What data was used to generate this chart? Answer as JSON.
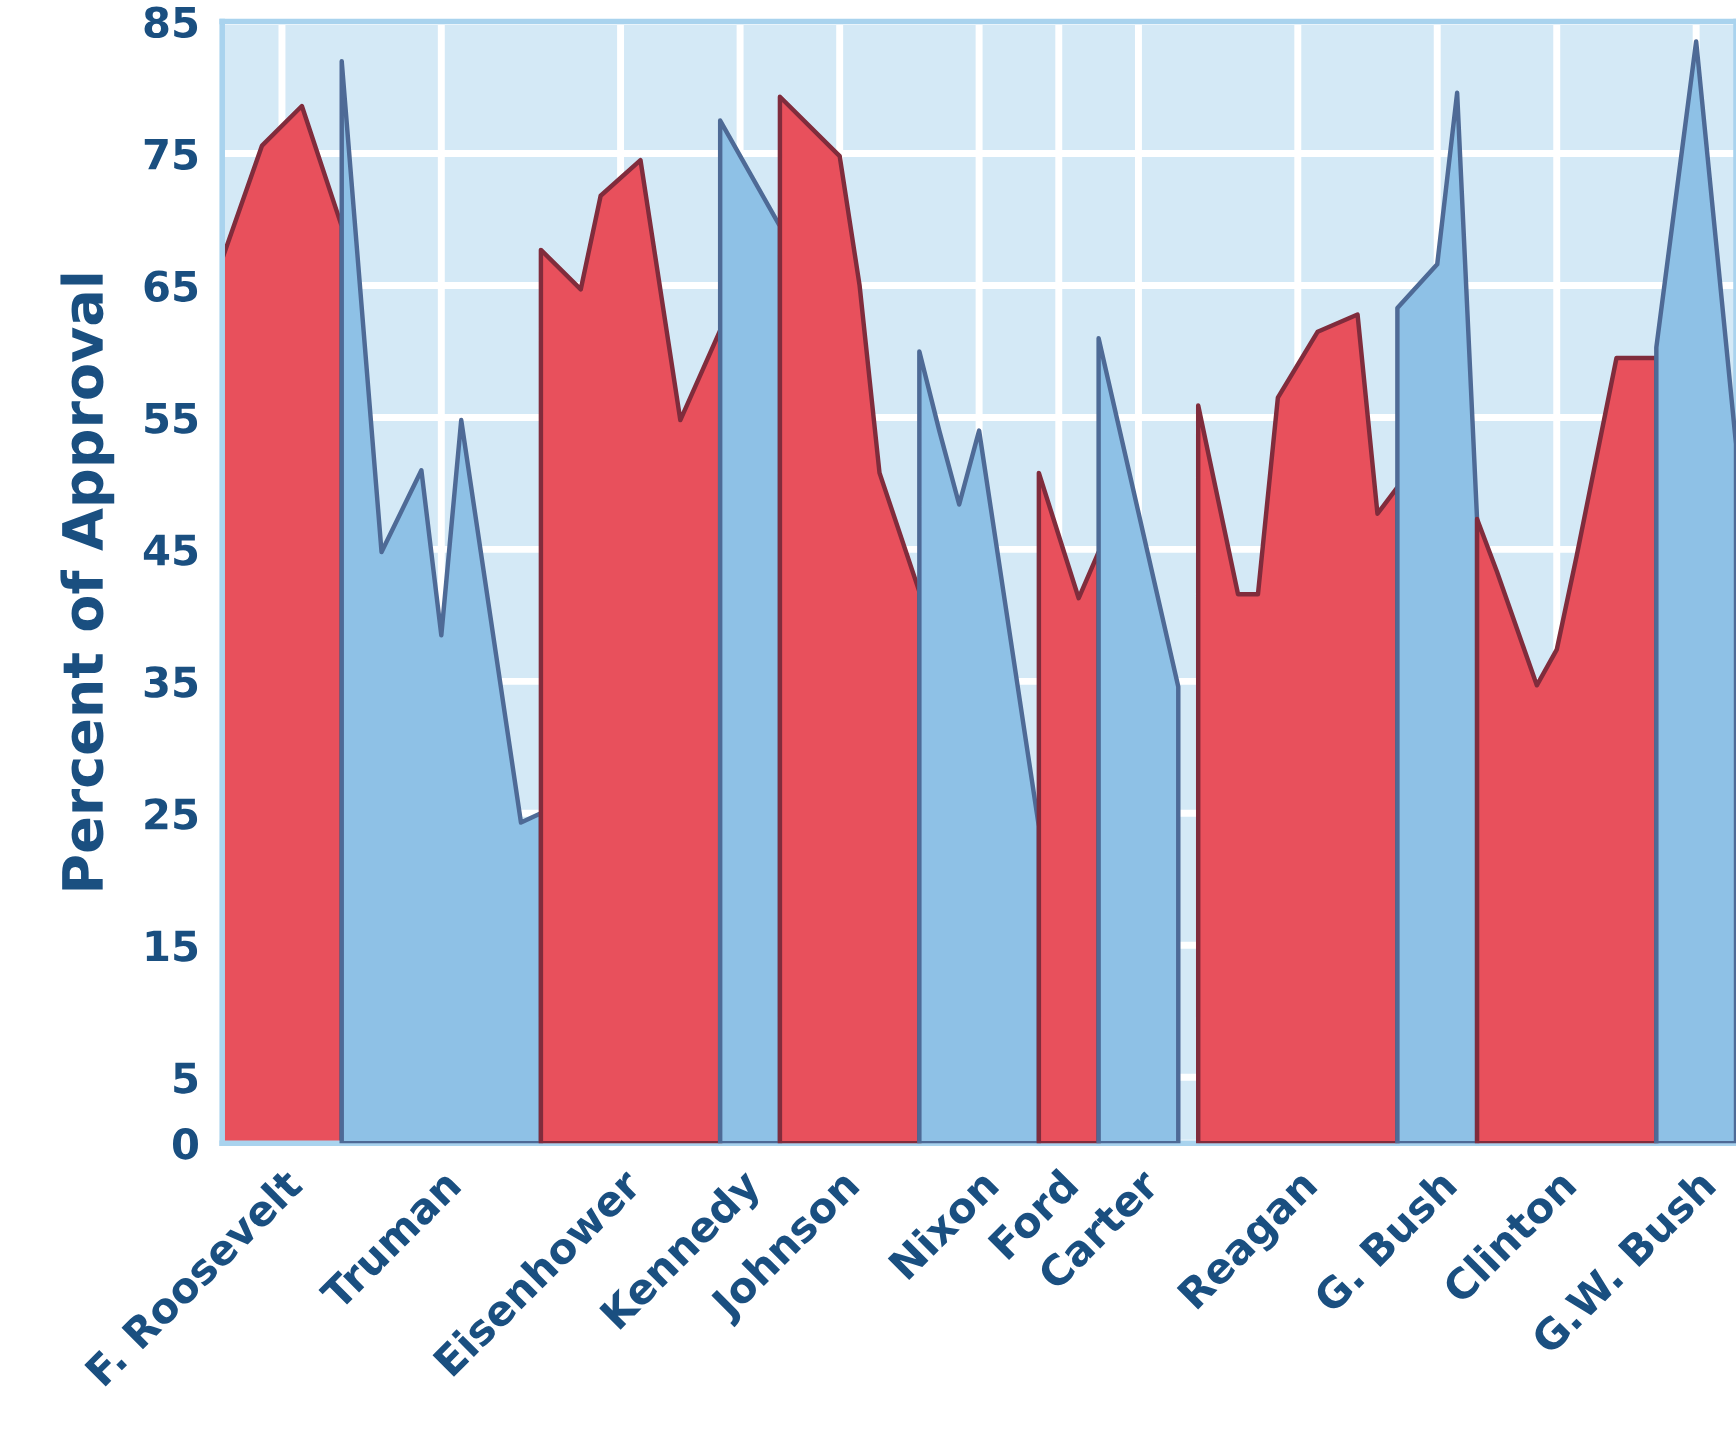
{
  "chart_data": {
    "type": "area",
    "ylabel": "Percent of Approval",
    "ylim": [
      0,
      85
    ],
    "yticks": [
      0,
      5,
      15,
      25,
      35,
      45,
      55,
      65,
      75,
      85
    ],
    "categories": [
      null,
      null,
      null,
      "F. Roosevelt",
      null,
      null,
      null,
      null,
      null,
      null,
      null,
      "Truman",
      null,
      null,
      null,
      null,
      null,
      null,
      null,
      null,
      "Eisenhower",
      null,
      null,
      null,
      null,
      null,
      "Kennedy",
      null,
      null,
      null,
      null,
      "Johnson",
      null,
      null,
      null,
      null,
      null,
      null,
      "Nixon",
      null,
      null,
      null,
      "Ford",
      null,
      null,
      null,
      "Carter",
      null,
      null,
      null,
      null,
      null,
      null,
      null,
      "Reagan",
      null,
      null,
      null,
      null,
      null,
      null,
      "G. Bush",
      null,
      null,
      null,
      null,
      null,
      "Clinton",
      null,
      null,
      null,
      null,
      null,
      null,
      "G.W. Bush",
      null,
      null
    ],
    "grid": true,
    "series": [
      {
        "color": "#e8505c",
        "values": [
          67,
          null,
          75.6,
          null,
          78.6,
          null,
          69.5,
          null,
          null,
          null,
          null,
          null,
          null,
          null,
          null,
          null,
          null,
          null,
          null,
          null,
          null,
          null,
          null,
          null,
          null,
          null,
          null,
          null,
          null,
          null,
          null,
          null,
          null,
          null,
          null,
          null,
          null,
          null,
          null,
          null,
          null,
          null,
          null,
          null,
          null,
          null,
          null,
          null,
          null,
          null,
          null,
          null,
          null,
          null,
          null,
          null,
          null,
          null,
          null,
          null,
          null,
          null,
          null,
          null,
          null,
          null,
          null,
          null,
          null,
          null,
          null,
          null,
          null,
          null,
          null,
          null,
          null
        ]
      },
      {
        "color": "#8ec1e6",
        "values": [
          null,
          null,
          null,
          null,
          null,
          null,
          82,
          null,
          44.8,
          null,
          51,
          38.5,
          54.8,
          null,
          null,
          24.3,
          25,
          null,
          null,
          null,
          null,
          null,
          null,
          null,
          null,
          null,
          null,
          null,
          null,
          null,
          null,
          null,
          null,
          null,
          null,
          null,
          null,
          null,
          null,
          null,
          null,
          null,
          null,
          null,
          null,
          null,
          null,
          null,
          null,
          null,
          null,
          null,
          null,
          null,
          null,
          null,
          null,
          null,
          null,
          null,
          null,
          null,
          null,
          null,
          null,
          null,
          null,
          null,
          null,
          null,
          null,
          null,
          null,
          null,
          null,
          null,
          null
        ]
      },
      {
        "color": "#e8505c",
        "values": [
          null,
          null,
          null,
          null,
          null,
          null,
          null,
          null,
          null,
          null,
          null,
          null,
          null,
          null,
          null,
          null,
          67.7,
          null,
          64.7,
          71.8,
          null,
          74.5,
          null,
          54.8,
          null,
          61.6,
          null,
          null,
          null,
          null,
          null,
          null,
          null,
          null,
          null,
          null,
          null,
          null,
          null,
          null,
          null,
          null,
          null,
          null,
          null,
          null,
          null,
          null,
          null,
          null,
          null,
          null,
          null,
          null,
          null,
          null,
          null,
          null,
          null,
          null,
          null,
          null,
          null,
          null,
          null,
          null,
          null,
          null,
          null,
          null,
          null,
          null,
          null,
          null,
          null,
          null,
          null
        ]
      },
      {
        "color": "#8ec1e6",
        "values": [
          null,
          null,
          null,
          null,
          null,
          null,
          null,
          null,
          null,
          null,
          null,
          null,
          null,
          null,
          null,
          null,
          null,
          null,
          null,
          null,
          null,
          null,
          null,
          null,
          null,
          77.5,
          null,
          null,
          69.5,
          null,
          null,
          null,
          null,
          null,
          null,
          null,
          null,
          null,
          null,
          null,
          null,
          null,
          null,
          null,
          null,
          null,
          null,
          null,
          null,
          null,
          null,
          null,
          null,
          null,
          null,
          null,
          null,
          null,
          null,
          null,
          null,
          null,
          null,
          null,
          null,
          null,
          null,
          null,
          null,
          null,
          null,
          null,
          null,
          null,
          null,
          null,
          null
        ]
      },
      {
        "color": "#e8505c",
        "values": [
          null,
          null,
          null,
          null,
          null,
          null,
          null,
          null,
          null,
          null,
          null,
          null,
          null,
          null,
          null,
          null,
          null,
          null,
          null,
          null,
          null,
          null,
          null,
          null,
          null,
          null,
          null,
          null,
          79.3,
          null,
          null,
          74.8,
          65,
          50.8,
          null,
          41.8,
          null,
          null,
          null,
          null,
          null,
          null,
          null,
          null,
          null,
          null,
          null,
          null,
          null,
          null,
          null,
          null,
          null,
          null,
          null,
          null,
          null,
          null,
          null,
          null,
          null,
          null,
          null,
          null,
          null,
          null,
          null,
          null,
          null,
          null,
          null,
          null,
          null,
          null,
          null,
          null,
          null
        ]
      },
      {
        "color": "#8ec1e6",
        "values": [
          null,
          null,
          null,
          null,
          null,
          null,
          null,
          null,
          null,
          null,
          null,
          null,
          null,
          null,
          null,
          null,
          null,
          null,
          null,
          null,
          null,
          null,
          null,
          null,
          null,
          null,
          null,
          null,
          null,
          null,
          null,
          null,
          null,
          null,
          null,
          60,
          54,
          48.4,
          54,
          null,
          null,
          24,
          null,
          null,
          null,
          null,
          null,
          null,
          null,
          null,
          null,
          null,
          null,
          null,
          null,
          null,
          null,
          null,
          null,
          null,
          null,
          null,
          null,
          null,
          null,
          null,
          null,
          null,
          null,
          null,
          null,
          null,
          null,
          null,
          null,
          null,
          null
        ]
      },
      {
        "color": "#e8505c",
        "values": [
          null,
          null,
          null,
          null,
          null,
          null,
          null,
          null,
          null,
          null,
          null,
          null,
          null,
          null,
          null,
          null,
          null,
          null,
          null,
          null,
          null,
          null,
          null,
          null,
          null,
          null,
          null,
          null,
          null,
          null,
          null,
          null,
          null,
          null,
          null,
          null,
          null,
          null,
          null,
          null,
          null,
          50.8,
          null,
          41.3,
          44.8,
          null,
          null,
          null,
          null,
          null,
          null,
          null,
          null,
          null,
          null,
          null,
          null,
          null,
          null,
          null,
          null,
          null,
          null,
          null,
          null,
          null,
          null,
          null,
          null,
          null,
          null,
          null,
          null,
          null,
          null,
          null,
          null
        ]
      },
      {
        "color": "#8ec1e6",
        "values": [
          null,
          null,
          null,
          null,
          null,
          null,
          null,
          null,
          null,
          null,
          null,
          null,
          null,
          null,
          null,
          null,
          null,
          null,
          null,
          null,
          null,
          null,
          null,
          null,
          null,
          null,
          null,
          null,
          null,
          null,
          null,
          null,
          null,
          null,
          null,
          null,
          null,
          null,
          null,
          null,
          null,
          null,
          null,
          null,
          61,
          null,
          null,
          null,
          34.6,
          null,
          null,
          null,
          null,
          null,
          null,
          null,
          null,
          null,
          null,
          null,
          null,
          null,
          null,
          null,
          null,
          null,
          null,
          null,
          null,
          null,
          null,
          null,
          null,
          null,
          null,
          null,
          null
        ]
      },
      {
        "color": "#e8505c",
        "values": [
          null,
          null,
          null,
          null,
          null,
          null,
          null,
          null,
          null,
          null,
          null,
          null,
          null,
          null,
          null,
          null,
          null,
          null,
          null,
          null,
          null,
          null,
          null,
          null,
          null,
          null,
          null,
          null,
          null,
          null,
          null,
          null,
          null,
          null,
          null,
          null,
          null,
          null,
          null,
          null,
          null,
          null,
          null,
          null,
          null,
          null,
          null,
          null,
          null,
          55.9,
          null,
          41.6,
          41.6,
          56.5,
          null,
          61.5,
          null,
          62.8,
          47.7,
          49.7,
          null,
          null,
          null,
          null,
          null,
          null,
          null,
          null,
          null,
          null,
          null,
          null,
          null,
          null,
          null,
          null,
          null
        ]
      },
      {
        "color": "#8ec1e6",
        "values": [
          null,
          null,
          null,
          null,
          null,
          null,
          null,
          null,
          null,
          null,
          null,
          null,
          null,
          null,
          null,
          null,
          null,
          null,
          null,
          null,
          null,
          null,
          null,
          null,
          null,
          null,
          null,
          null,
          null,
          null,
          null,
          null,
          null,
          null,
          null,
          null,
          null,
          null,
          null,
          null,
          null,
          null,
          null,
          null,
          null,
          null,
          null,
          null,
          null,
          null,
          null,
          null,
          null,
          null,
          null,
          null,
          null,
          null,
          null,
          63.3,
          null,
          66.6,
          79.6,
          47.3,
          null,
          null,
          null,
          null,
          null,
          null,
          null,
          null,
          null,
          null,
          null,
          null,
          null
        ]
      },
      {
        "color": "#e8505c",
        "values": [
          null,
          null,
          null,
          null,
          null,
          null,
          null,
          null,
          null,
          null,
          null,
          null,
          null,
          null,
          null,
          null,
          null,
          null,
          null,
          null,
          null,
          null,
          null,
          null,
          null,
          null,
          null,
          null,
          null,
          null,
          null,
          null,
          null,
          null,
          null,
          null,
          null,
          null,
          null,
          null,
          null,
          null,
          null,
          null,
          null,
          null,
          null,
          null,
          null,
          null,
          null,
          null,
          null,
          null,
          null,
          null,
          null,
          null,
          null,
          null,
          null,
          null,
          null,
          47.3,
          43.3,
          null,
          34.7,
          37.4,
          44.5,
          null,
          59.5,
          null,
          59.5,
          null,
          null,
          null,
          null
        ]
      },
      {
        "color": "#8ec1e6",
        "values": [
          null,
          null,
          null,
          null,
          null,
          null,
          null,
          null,
          null,
          null,
          null,
          null,
          null,
          null,
          null,
          null,
          null,
          null,
          null,
          null,
          null,
          null,
          null,
          null,
          null,
          null,
          null,
          null,
          null,
          null,
          null,
          null,
          null,
          null,
          null,
          null,
          null,
          null,
          null,
          null,
          null,
          null,
          null,
          null,
          null,
          null,
          null,
          null,
          null,
          null,
          null,
          null,
          null,
          null,
          null,
          null,
          null,
          null,
          null,
          null,
          null,
          null,
          null,
          null,
          null,
          null,
          null,
          null,
          null,
          null,
          null,
          null,
          60.3,
          null,
          83.5,
          null,
          53
        ]
      }
    ]
  }
}
